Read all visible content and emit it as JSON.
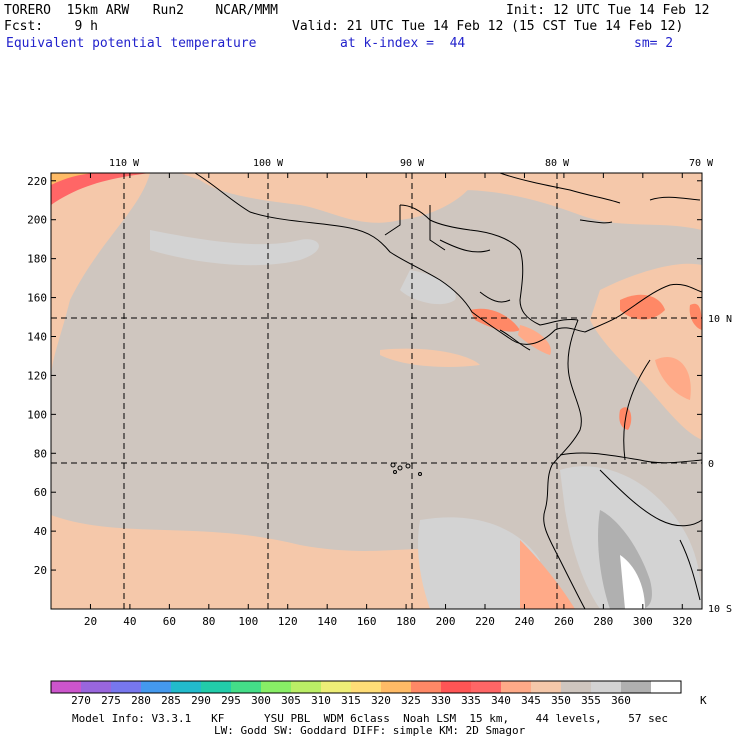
{
  "header": {
    "model": "TORERO  15km ARW   Run2    NCAR/MMM",
    "init": "Init: 12 UTC Tue 14 Feb 12",
    "fcst": "Fcst:    9 h",
    "valid": "Valid: 21 UTC Tue 14 Feb 12 (15 CST Tue 14 Feb 12)",
    "field": "Equivalent potential temperature",
    "level": "at k-index =  44",
    "smooth": "sm= 2"
  },
  "map": {
    "lon_labels": [
      "110 W",
      "100 W",
      "90 W",
      "80 W",
      "70 W"
    ],
    "lat_labels": [
      "10 N",
      "0",
      "10 S"
    ],
    "y_ticks": [
      "220",
      "200",
      "180",
      "160",
      "140",
      "120",
      "100",
      "80",
      "60",
      "40",
      "20"
    ],
    "x_ticks": [
      "20",
      "40",
      "60",
      "80",
      "100",
      "120",
      "140",
      "160",
      "180",
      "200",
      "220",
      "240",
      "260",
      "280",
      "300",
      "320"
    ],
    "grid_nx": 330,
    "grid_ny": 224
  },
  "colorbar": {
    "labels": [
      "270",
      "275",
      "280",
      "285",
      "290",
      "295",
      "300",
      "305",
      "310",
      "315",
      "320",
      "325",
      "330",
      "335",
      "340",
      "345",
      "350",
      "355",
      "360"
    ],
    "unit": "K",
    "colors": [
      "#cc55cc",
      "#9966dd",
      "#7777ee",
      "#4499ee",
      "#22bbcc",
      "#22ccaa",
      "#44dd88",
      "#88ee66",
      "#bbee66",
      "#eeee77",
      "#ffdd77",
      "#ffbb66",
      "#ff8866",
      "#ff5555",
      "#ff6666",
      "#ffaa88",
      "#f5c8aa",
      "#cfc6bf",
      "#d3d3d3",
      "#b0b0b0",
      "#ffffff"
    ]
  },
  "footer": {
    "line1": "Model Info: V3.3.1   KF      YSU PBL  WDM 6class  Noah LSM  15 km,    44 levels,    57 sec",
    "line2": "LW: Godd SW: Goddard DIFF: simple KM: 2D Smagor"
  }
}
